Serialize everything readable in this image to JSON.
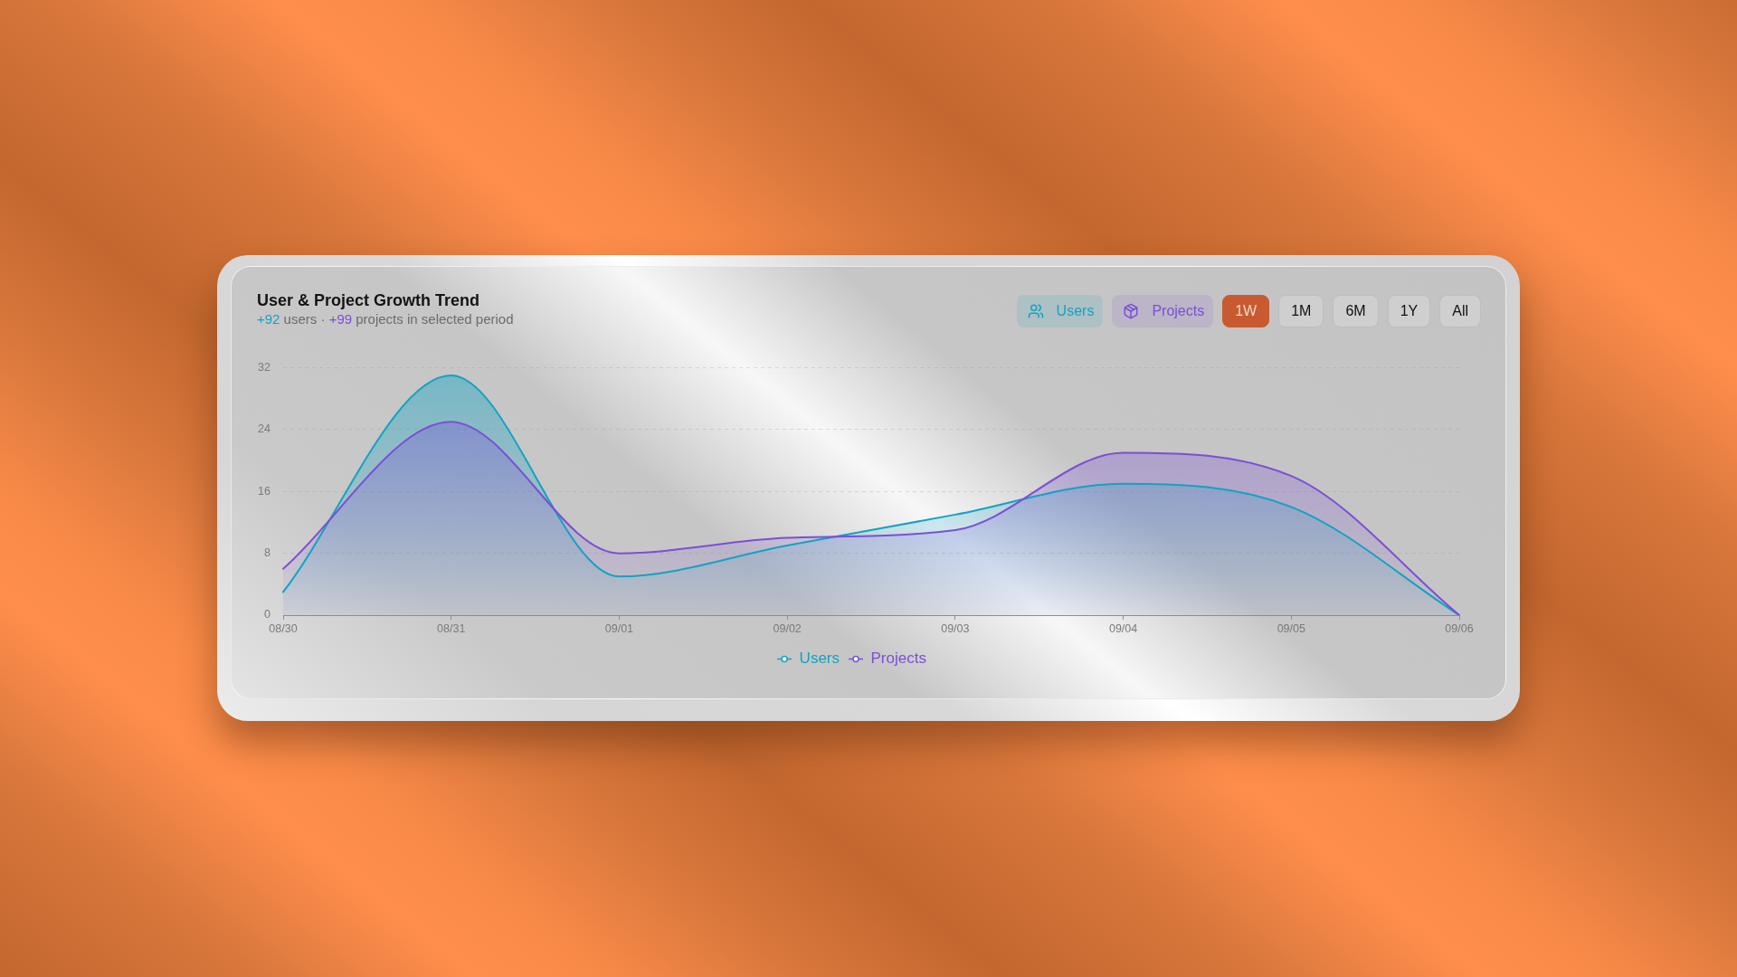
{
  "chart_data": {
    "type": "area",
    "title": "User & Project Growth Trend",
    "subtitle": "+92 users · +99 projects in selected period",
    "categories": [
      "08/30",
      "08/31",
      "09/01",
      "09/02",
      "09/03",
      "09/04",
      "09/05",
      "09/06"
    ],
    "series": [
      {
        "name": "Users",
        "color": "#12a3c3",
        "values": [
          3,
          31,
          5,
          9,
          13,
          17,
          14,
          0
        ]
      },
      {
        "name": "Projects",
        "color": "#7b4fd6",
        "values": [
          6,
          25,
          8,
          10,
          11,
          21,
          18,
          0
        ]
      }
    ],
    "ylim": [
      0,
      32
    ],
    "yticks": [
      0,
      8,
      16,
      24,
      32
    ],
    "grid": "y",
    "legend": "bottom",
    "marker": "none",
    "annotations": [
      "1W",
      "1M",
      "6M",
      "1Y",
      "All"
    ]
  }
}
